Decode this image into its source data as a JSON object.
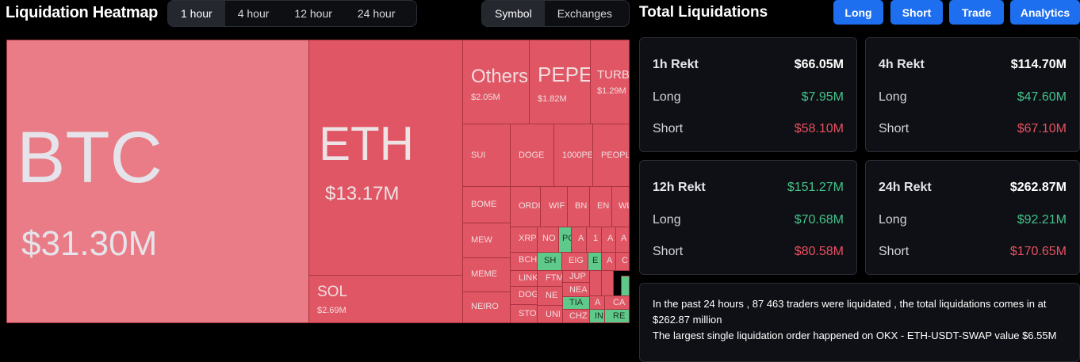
{
  "header": {
    "title": "Liquidation Heatmap",
    "time_options": [
      "1 hour",
      "4 hour",
      "12 hour",
      "24 hour"
    ],
    "selected_time": "1 hour",
    "group_options": [
      "Symbol",
      "Exchanges"
    ],
    "selected_group": "Symbol"
  },
  "right": {
    "title": "Total Liquidations",
    "buttons": [
      "Long",
      "Short",
      "Trade",
      "Analytics"
    ],
    "cards": [
      {
        "label": "1h Rekt",
        "total": "$66.05M",
        "total_color": "white",
        "long_label": "Long",
        "long": "$7.95M",
        "short_label": "Short",
        "short": "$58.10M"
      },
      {
        "label": "4h Rekt",
        "total": "$114.70M",
        "total_color": "white",
        "long_label": "Long",
        "long": "$47.60M",
        "short_label": "Short",
        "short": "$67.10M"
      },
      {
        "label": "12h Rekt",
        "total": "$151.27M",
        "total_color": "green",
        "long_label": "Long",
        "long": "$70.68M",
        "short_label": "Short",
        "short": "$80.58M"
      },
      {
        "label": "24h Rekt",
        "total": "$262.87M",
        "total_color": "white",
        "long_label": "Long",
        "long": "$92.21M",
        "short_label": "Short",
        "short": "$170.65M"
      }
    ],
    "summary_line1": "In the past 24 hours , 87 463 traders were liquidated , the total liquidations comes in at $262.87 million",
    "summary_line2": "The largest single liquidation order happened on OKX - ETH-USDT-SWAP value $6.55M"
  },
  "heatmap": {
    "major": [
      {
        "symbol": "BTC",
        "amount": "$31.30M"
      },
      {
        "symbol": "ETH",
        "amount": "$13.17M"
      },
      {
        "symbol": "SOL",
        "amount": "$2.69M"
      },
      {
        "symbol": "Others",
        "amount": "$2.05M"
      },
      {
        "symbol": "PEPE",
        "amount": "$1.82M"
      },
      {
        "symbol": "TURBO",
        "amount": "$1.29M"
      }
    ],
    "minor": [
      "SUI",
      "DOGE",
      "1000PE",
      "PEOPL",
      "BOME",
      "ORDI",
      "WIF",
      "BN",
      "EN",
      "WL",
      "MEW",
      "XRP",
      "NO",
      "PO",
      "A",
      "1",
      "A",
      "A",
      "MEME",
      "BCH",
      "SH",
      "EIG",
      "E",
      "A",
      "C",
      "LINK",
      "FTM",
      "JUP",
      "NEIRO",
      "DOG",
      "NEA",
      "STOI",
      "NE",
      "TIA",
      "A",
      "CA",
      "UNI",
      "CHZ",
      "IN",
      "RE"
    ],
    "colors": {
      "short": "#e05664",
      "long": "#5ec98a",
      "btc": "#ea7c87"
    }
  }
}
